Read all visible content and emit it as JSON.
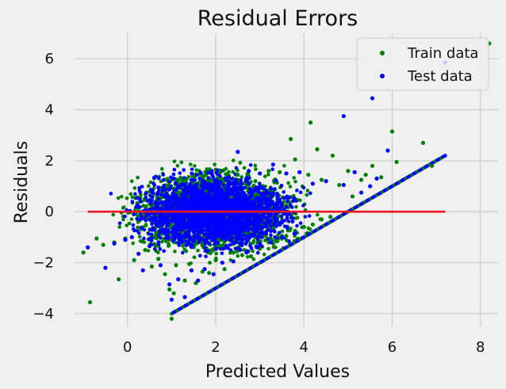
{
  "chart_data": {
    "type": "scatter",
    "title": "Residual Errors",
    "xlabel": "Predicted Values",
    "ylabel": "Residuals",
    "xlim": [
      -1.2,
      8.4
    ],
    "ylim": [
      -4.5,
      7.0
    ],
    "xticks": [
      0,
      2,
      4,
      6,
      8
    ],
    "xtick_labels": [
      "0",
      "2",
      "4",
      "6",
      "8"
    ],
    "yticks": [
      -4,
      -2,
      0,
      2,
      4,
      6
    ],
    "ytick_labels": [
      "−4",
      "−2",
      "0",
      "2",
      "4",
      "6"
    ],
    "grid": true,
    "legend_position": "top-right",
    "series": [
      {
        "name": "Train data",
        "color": "#008000",
        "points": [
          [
            -1.0,
            -1.6
          ],
          [
            -0.85,
            -3.55
          ],
          [
            -0.7,
            -1.05
          ],
          [
            -0.55,
            -1.3
          ],
          [
            -0.3,
            -1.2
          ],
          [
            -0.2,
            -2.65
          ],
          [
            -0.05,
            -1.05
          ],
          [
            0.15,
            -1.9
          ],
          [
            0.3,
            -1.15
          ],
          [
            0.4,
            -1.5
          ],
          [
            0.55,
            -2.15
          ],
          [
            0.7,
            -1.85
          ],
          [
            0.85,
            -2.45
          ],
          [
            0.95,
            -3.05
          ],
          [
            1.0,
            -4.2
          ],
          [
            1.05,
            -3.2
          ],
          [
            1.1,
            -2.1
          ],
          [
            1.3,
            -2.7
          ],
          [
            1.4,
            -2.05
          ],
          [
            1.55,
            -2.8
          ],
          [
            1.7,
            -2.35
          ],
          [
            1.85,
            -2.4
          ],
          [
            2.0,
            -1.9
          ],
          [
            2.2,
            -2.25
          ],
          [
            2.4,
            -1.6
          ],
          [
            2.6,
            -1.7
          ],
          [
            2.8,
            -1.75
          ],
          [
            3.0,
            -1.45
          ],
          [
            3.2,
            -1.2
          ],
          [
            3.4,
            -1.15
          ],
          [
            3.6,
            -0.95
          ],
          [
            3.8,
            -0.75
          ],
          [
            4.0,
            -0.6
          ],
          [
            4.2,
            -0.5
          ],
          [
            4.4,
            -0.3
          ],
          [
            4.6,
            -0.2
          ],
          [
            0.9,
            1.0
          ],
          [
            1.3,
            1.2
          ],
          [
            1.7,
            1.4
          ],
          [
            2.1,
            1.55
          ],
          [
            2.5,
            1.45
          ],
          [
            2.9,
            1.2
          ],
          [
            3.2,
            1.6
          ],
          [
            3.45,
            1.55
          ],
          [
            3.7,
            2.85
          ],
          [
            3.8,
            2.05
          ],
          [
            4.1,
            1.45
          ],
          [
            4.15,
            3.5
          ],
          [
            4.3,
            2.45
          ],
          [
            4.4,
            1.25
          ],
          [
            4.65,
            2.2
          ],
          [
            4.8,
            1.05
          ],
          [
            5.0,
            1.6
          ],
          [
            5.1,
            0.6
          ],
          [
            5.3,
            1.25
          ],
          [
            5.4,
            1.45
          ],
          [
            5.55,
            1.8
          ],
          [
            5.75,
            1.35
          ],
          [
            6.0,
            3.15
          ],
          [
            6.1,
            1.95
          ],
          [
            6.7,
            2.7
          ],
          [
            6.9,
            1.8
          ],
          [
            8.2,
            6.6
          ]
        ]
      },
      {
        "name": "Test data",
        "color": "#0000ff",
        "points": [
          [
            -0.9,
            -1.4
          ],
          [
            -0.5,
            -2.2
          ],
          [
            -0.3,
            -1.25
          ],
          [
            -0.05,
            -1.1
          ],
          [
            0.1,
            -1.0
          ],
          [
            0.25,
            -1.65
          ],
          [
            0.35,
            -2.3
          ],
          [
            0.5,
            -1.35
          ],
          [
            0.75,
            -2.1
          ],
          [
            0.95,
            -2.85
          ],
          [
            1.0,
            -3.45
          ],
          [
            1.15,
            -2.65
          ],
          [
            1.3,
            -3.35
          ],
          [
            1.45,
            -2.3
          ],
          [
            1.6,
            -2.7
          ],
          [
            1.75,
            -2.25
          ],
          [
            1.95,
            -2.45
          ],
          [
            2.15,
            -2.0
          ],
          [
            2.4,
            -1.95
          ],
          [
            2.7,
            -1.6
          ],
          [
            2.95,
            -1.4
          ],
          [
            3.25,
            -1.2
          ],
          [
            3.5,
            -1.0
          ],
          [
            3.8,
            -0.85
          ],
          [
            0.7,
            0.95
          ],
          [
            1.05,
            1.3
          ],
          [
            1.45,
            1.25
          ],
          [
            1.9,
            1.5
          ],
          [
            2.3,
            1.35
          ],
          [
            2.5,
            2.35
          ],
          [
            2.75,
            1.6
          ],
          [
            3.0,
            1.5
          ],
          [
            3.3,
            1.85
          ],
          [
            3.6,
            1.5
          ],
          [
            3.9,
            1.55
          ],
          [
            4.2,
            1.1
          ],
          [
            4.5,
            1.2
          ],
          [
            4.9,
            1.05
          ],
          [
            5.15,
            1.55
          ],
          [
            5.3,
            0.75
          ],
          [
            5.5,
            1.0
          ],
          [
            5.65,
            1.3
          ],
          [
            5.9,
            2.4
          ],
          [
            5.55,
            4.45
          ],
          [
            4.9,
            3.75
          ],
          [
            7.2,
            5.85
          ]
        ]
      }
    ],
    "cloud_color_train": "#008000",
    "cloud_color_test": "#0000ff",
    "reference_line": {
      "x": [
        -0.9,
        7.2
      ],
      "y": [
        0,
        0
      ],
      "color": "#e8141e"
    },
    "lower_boundary_line": {
      "x": [
        1.0,
        7.2
      ],
      "y": [
        -4.0,
        2.2
      ]
    }
  }
}
